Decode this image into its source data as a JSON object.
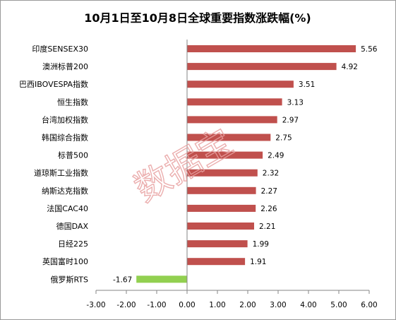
{
  "chart_data": {
    "type": "bar",
    "orientation": "horizontal",
    "title": "10月1日至10月8日全球重要指数涨跌幅(%)",
    "categories": [
      "印度SENSEX30",
      "澳洲标普200",
      "巴西IBOVESPA指数",
      "恒生指数",
      "台湾加权指数",
      "韩国综合指数",
      "标普500",
      "道琼斯工业指数",
      "纳斯达克指数",
      "法国CAC40",
      "德国DAX",
      "日经225",
      "英国富时100",
      "俄罗斯RTS"
    ],
    "values": [
      5.56,
      4.92,
      3.51,
      3.13,
      2.97,
      2.75,
      2.49,
      2.32,
      2.27,
      2.26,
      2.21,
      1.99,
      1.91,
      -1.67
    ],
    "value_labels": [
      "5.56",
      "4.92",
      "3.51",
      "3.13",
      "2.97",
      "2.75",
      "2.49",
      "2.32",
      "2.27",
      "2.26",
      "2.21",
      "1.99",
      "1.91",
      "-1.67"
    ],
    "xlim": [
      -3,
      6
    ],
    "xticks": [
      -3,
      -2,
      -1,
      0,
      1,
      2,
      3,
      4,
      5,
      6
    ],
    "xtick_labels": [
      "-3.00",
      "-2.00",
      "-1.00",
      "0.00",
      "1.00",
      "2.00",
      "3.00",
      "4.00",
      "5.00",
      "6.00"
    ],
    "grid": false,
    "legend": "none",
    "colors": {
      "positive": "#c0504d",
      "negative": "#92d050",
      "axis": "#868686"
    }
  },
  "watermark": "数据宝"
}
